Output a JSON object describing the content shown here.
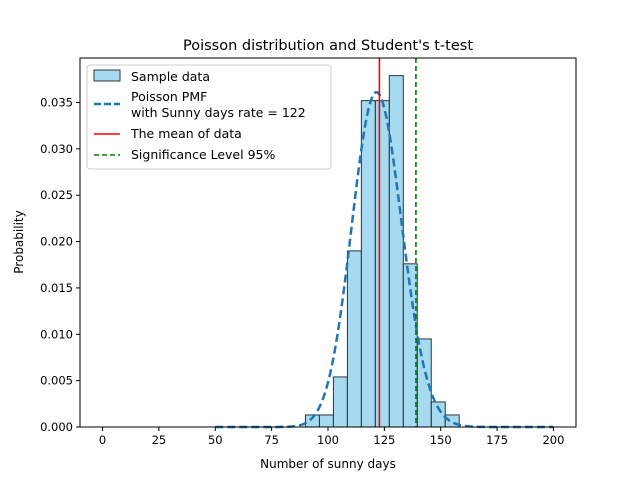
{
  "chart_data": {
    "type": "bar",
    "title": "Poisson distribution and Student's t-test",
    "xlabel": "Number of sunny days",
    "ylabel": "Probability",
    "xlim": [
      -10,
      210
    ],
    "ylim": [
      0,
      0.0398
    ],
    "xticks": [
      0,
      25,
      50,
      75,
      100,
      125,
      150,
      175,
      200
    ],
    "yticks": [
      0.0,
      0.005,
      0.01,
      0.015,
      0.02,
      0.025,
      0.03,
      0.035
    ],
    "xtick_labels": [
      "0",
      "25",
      "50",
      "75",
      "100",
      "125",
      "150",
      "175",
      "200"
    ],
    "ytick_labels": [
      "0.000",
      "0.005",
      "0.010",
      "0.015",
      "0.020",
      "0.025",
      "0.030",
      "0.035"
    ],
    "histogram": {
      "name": "Sample data",
      "bin_edges": [
        90,
        96.2,
        102.4,
        108.6,
        114.8,
        121,
        127.2,
        133.4,
        139.6,
        145.8,
        152,
        158.2
      ],
      "values": [
        0.0013,
        0.0013,
        0.0054,
        0.019,
        0.0352,
        0.0352,
        0.0379,
        0.0176,
        0.0095,
        0.0027,
        0.0013
      ],
      "fill_color": "#87ceeb",
      "edge_color": "#333333"
    },
    "pmf": {
      "name_line1": "Poisson PMF",
      "name_line2": "with Sunny days rate = 122",
      "lambda": 122,
      "x_range": [
        50,
        200
      ],
      "color": "#1f77b4"
    },
    "mean_line": {
      "name": "The mean of data",
      "x": 122.8,
      "color": "#ff0000"
    },
    "significance_line": {
      "name": "Significance Level 95%",
      "x": 139,
      "color": "#008000"
    },
    "legend_position": "upper-left",
    "grid": false
  }
}
